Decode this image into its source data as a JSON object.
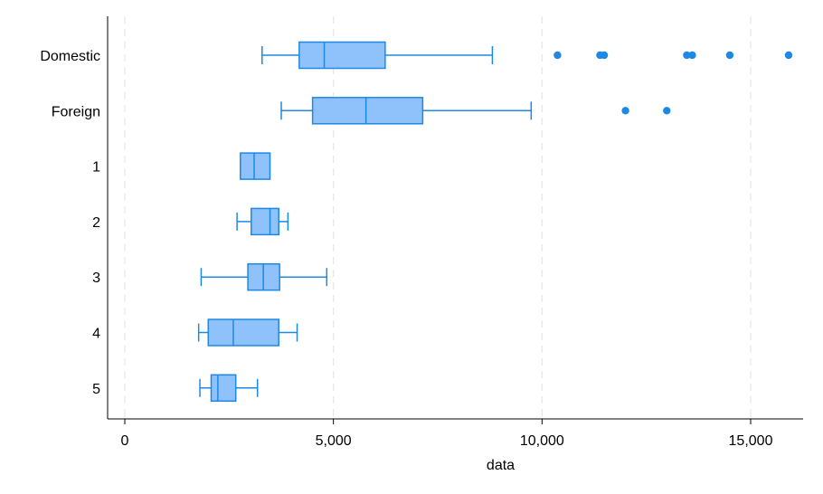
{
  "chart_data": {
    "type": "boxplot",
    "orientation": "horizontal",
    "xlabel": "data",
    "ylabel": "",
    "xlim": [
      -400,
      16200
    ],
    "xticks": [
      0,
      5000,
      10000,
      15000
    ],
    "xtick_labels": [
      "0",
      "5,000",
      "10,000",
      "15,000"
    ],
    "grid": "vertical dashed",
    "colors": {
      "box_fill": "#8fc1fb",
      "box_stroke": "#1e88e5",
      "outlier": "#1e88e5",
      "grid": "#e6e6e6",
      "axis": "#000000"
    },
    "categories": [
      "Domestic",
      "Foreign",
      "1",
      "2",
      "3",
      "4",
      "5"
    ],
    "boxes": [
      {
        "category": "Domestic",
        "whisker_low": 3290,
        "q1": 4180,
        "median": 4780,
        "q3": 6240,
        "whisker_high": 8810,
        "outliers": [
          10370,
          11390,
          11490,
          13470,
          13600,
          14500,
          15910
        ]
      },
      {
        "category": "Foreign",
        "whisker_low": 3750,
        "q1": 4500,
        "median": 5780,
        "q3": 7140,
        "whisker_high": 9740,
        "outliers": [
          12000,
          12990
        ]
      },
      {
        "category": "1",
        "whisker_low": null,
        "q1": 2770,
        "median": 3100,
        "q3": 3480,
        "whisker_high": null,
        "outliers": []
      },
      {
        "category": "2",
        "whisker_low": 2690,
        "q1": 3030,
        "median": 3480,
        "q3": 3690,
        "whisker_high": 3910,
        "outliers": []
      },
      {
        "category": "3",
        "whisker_low": 1830,
        "q1": 2950,
        "median": 3320,
        "q3": 3710,
        "whisker_high": 4840,
        "outliers": []
      },
      {
        "category": "4",
        "whisker_low": 1770,
        "q1": 2000,
        "median": 2600,
        "q3": 3690,
        "whisker_high": 4130,
        "outliers": []
      },
      {
        "category": "5",
        "whisker_low": 1800,
        "q1": 2070,
        "median": 2230,
        "q3": 2660,
        "whisker_high": 3180,
        "outliers": []
      }
    ]
  }
}
